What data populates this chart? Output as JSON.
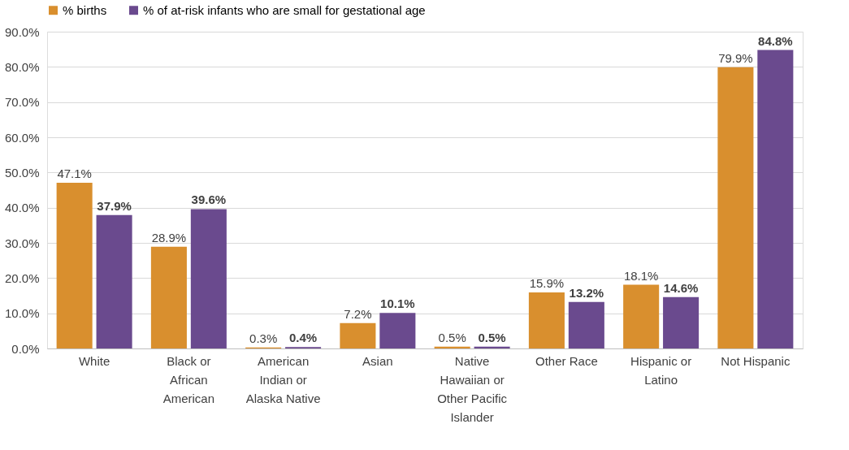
{
  "chart_data": {
    "type": "bar",
    "categories": [
      "White",
      "Black or African American",
      "American Indian or Alaska Native",
      "Asian",
      "Native Hawaiian or Other Pacific Islander",
      "Other Race",
      "Hispanic or Latino",
      "Not Hispanic"
    ],
    "series": [
      {
        "name": "% births",
        "color": "#d98f2e",
        "values": [
          47.1,
          28.9,
          0.3,
          7.2,
          0.5,
          15.9,
          18.1,
          79.9
        ],
        "value_labels": [
          "47.1%",
          "28.9%",
          "0.3%",
          "7.2%",
          "0.5%",
          "15.9%",
          "18.1%",
          "79.9%"
        ]
      },
      {
        "name": "% of at-risk infants who are small for gestational age",
        "color": "#6a4a8e",
        "values": [
          37.9,
          39.6,
          0.4,
          10.1,
          0.5,
          13.2,
          14.6,
          84.8
        ],
        "value_labels": [
          "37.9%",
          "39.6%",
          "0.4%",
          "10.1%",
          "0.5%",
          "13.2%",
          "14.6%",
          "84.8%"
        ]
      }
    ],
    "ylim": [
      0,
      90
    ],
    "yticks": [
      {
        "value": 0,
        "label": "0.0%"
      },
      {
        "value": 10,
        "label": "10.0%"
      },
      {
        "value": 20,
        "label": "20.0%"
      },
      {
        "value": 30,
        "label": "30.0%"
      },
      {
        "value": 40,
        "label": "40.0%"
      },
      {
        "value": 50,
        "label": "50.0%"
      },
      {
        "value": 60,
        "label": "60.0%"
      },
      {
        "value": 70,
        "label": "70.0%"
      },
      {
        "value": 80,
        "label": "80.0%"
      },
      {
        "value": 90,
        "label": "90.0%"
      }
    ],
    "grid": "y",
    "legend": "top"
  }
}
